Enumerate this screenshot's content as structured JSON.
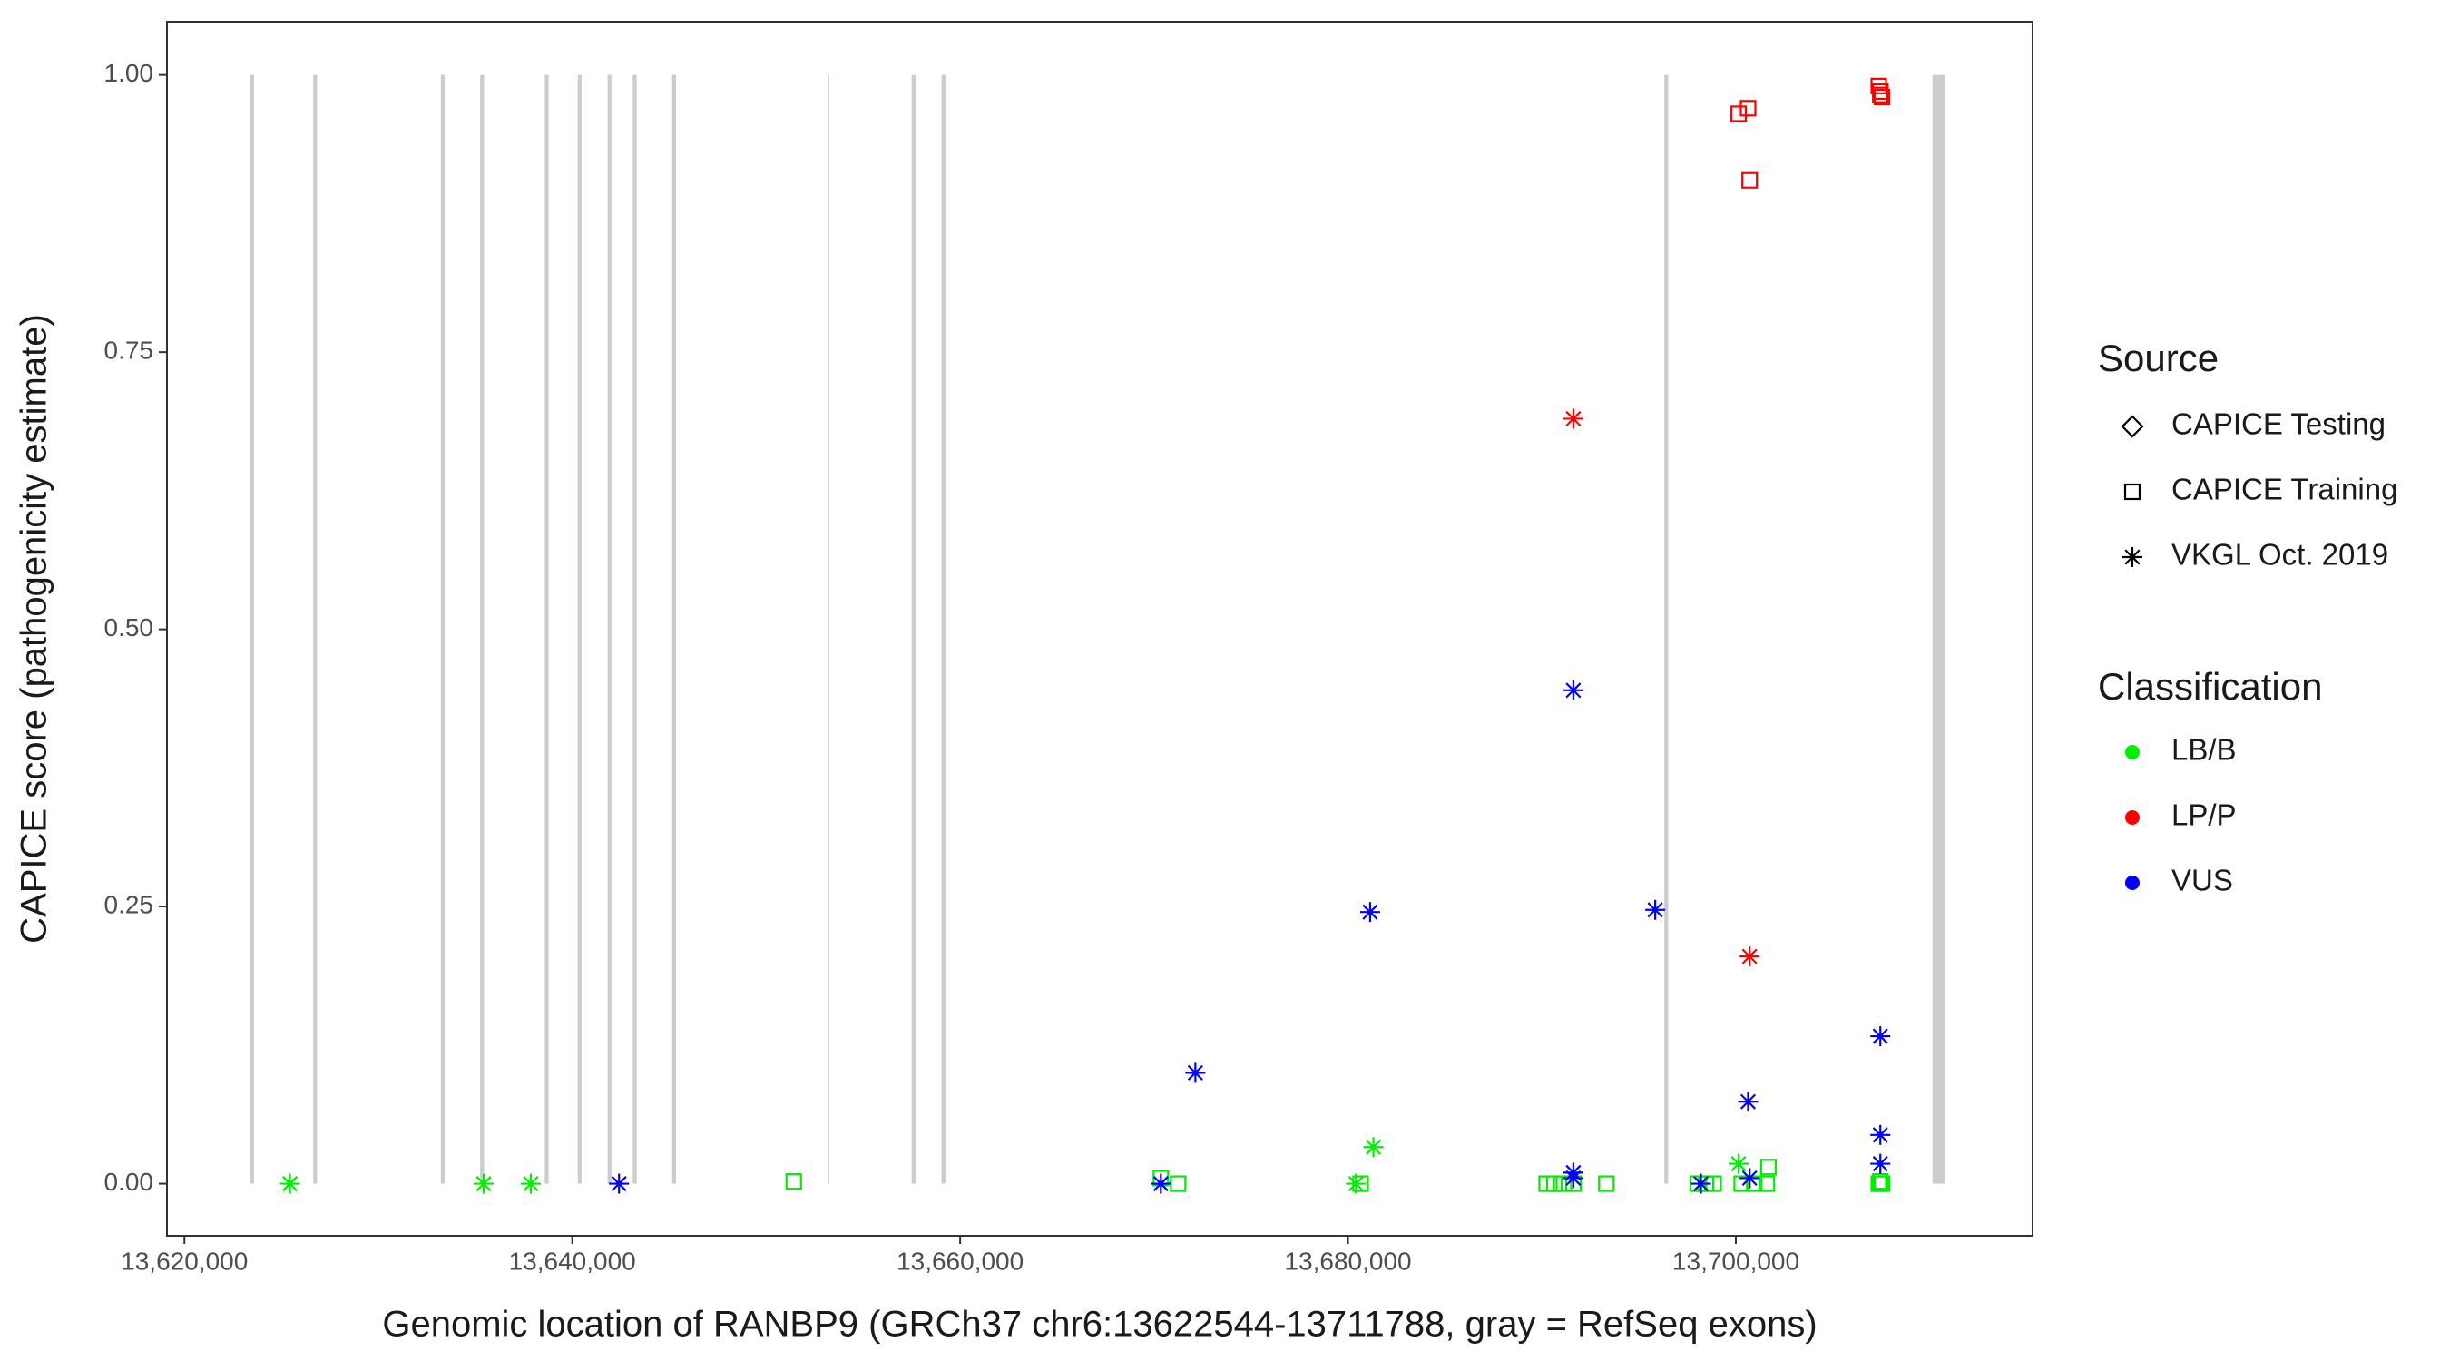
{
  "chart_data": {
    "type": "scatter",
    "x_label": "Genomic location of RANBP9 (GRCh37 chr6:13622544-13711788, gray = RefSeq exons)",
    "y_label": "CAPICE score (pathogenicity estimate)",
    "xlim": [
      13619100,
      13715300
    ],
    "ylim": [
      -0.047,
      1.048
    ],
    "xticks": [
      {
        "value": 13620000,
        "label": "13,620,000"
      },
      {
        "value": 13640000,
        "label": "13,640,000"
      },
      {
        "value": 13660000,
        "label": "13,660,000"
      },
      {
        "value": 13680000,
        "label": "13,680,000"
      },
      {
        "value": 13700000,
        "label": "13,700,000"
      }
    ],
    "yticks": [
      {
        "value": 0,
        "label": "0.00"
      },
      {
        "value": 0.25,
        "label": "0.25"
      },
      {
        "value": 0.5,
        "label": "0.50"
      },
      {
        "value": 0.75,
        "label": "0.75"
      },
      {
        "value": 1,
        "label": "1.00"
      }
    ],
    "exon_color": "#cccccc",
    "exons": [
      [
        13623390,
        13623590
      ],
      [
        13626640,
        13626840
      ],
      [
        13633220,
        13633420
      ],
      [
        13635250,
        13635450
      ],
      [
        13638580,
        13638780
      ],
      [
        13640280,
        13640480
      ],
      [
        13641820,
        13642020
      ],
      [
        13643120,
        13643320
      ],
      [
        13645150,
        13645350
      ],
      [
        13653170,
        13653250
      ],
      [
        13657500,
        13657700
      ],
      [
        13659040,
        13659240
      ],
      [
        13696310,
        13696510
      ],
      [
        13710140,
        13710780
      ]
    ],
    "legend_source_title": "Source",
    "sources": [
      {
        "name": "CAPICE Testing",
        "shape": "diamond"
      },
      {
        "name": "CAPICE Training",
        "shape": "square"
      },
      {
        "name": "VKGL Oct. 2019",
        "shape": "asterisk"
      }
    ],
    "legend_class_title": "Classification",
    "classes": [
      {
        "name": "LB/B",
        "color": "#00ee00"
      },
      {
        "name": "LP/P",
        "color": "#ff0000"
      },
      {
        "name": "VUS",
        "color": "#0000ff"
      }
    ],
    "series": [
      {
        "source": "CAPICE Training",
        "classification": "LB/B",
        "x": [
          13651420,
          13670350,
          13671240,
          13680650,
          13690240,
          13690640,
          13691130,
          13691620,
          13693320,
          13698040,
          13698450,
          13698850,
          13700300,
          13700950,
          13701680,
          13701600,
          13707370,
          13707450,
          13707530
        ],
        "values": [
          0.002,
          0.005,
          0,
          0,
          0,
          0,
          0,
          0,
          0,
          0,
          0,
          0,
          0,
          0,
          0.015,
          0,
          0,
          0.002,
          0
        ]
      },
      {
        "source": "CAPICE Training",
        "classification": "LP/P",
        "x": [
          13700140,
          13700630,
          13700710,
          13707370,
          13707450,
          13707450,
          13707530
        ],
        "values": [
          0.965,
          0.97,
          0.905,
          0.99,
          0.985,
          0.982,
          0.98
        ]
      },
      {
        "source": "VKGL Oct. 2019",
        "classification": "LB/B",
        "x": [
          13625440,
          13635430,
          13637860,
          13680410,
          13681310,
          13700140
        ],
        "values": [
          0,
          0,
          0,
          0,
          0.033,
          0.018
        ]
      },
      {
        "source": "VKGL Oct. 2019",
        "classification": "VUS",
        "x": [
          13642410,
          13670350,
          13672130,
          13681140,
          13691620,
          13691620,
          13691620,
          13695840,
          13698200,
          13700630,
          13700710,
          13707450,
          13707450,
          13707450
        ],
        "values": [
          0,
          0,
          0.1,
          0.245,
          0.445,
          0.01,
          0.005,
          0.247,
          0,
          0.074,
          0.005,
          0.133,
          0.044,
          0.018
        ]
      },
      {
        "source": "VKGL Oct. 2019",
        "classification": "LP/P",
        "x": [
          13691620,
          13700710
        ],
        "values": [
          0.69,
          0.205
        ]
      }
    ]
  }
}
